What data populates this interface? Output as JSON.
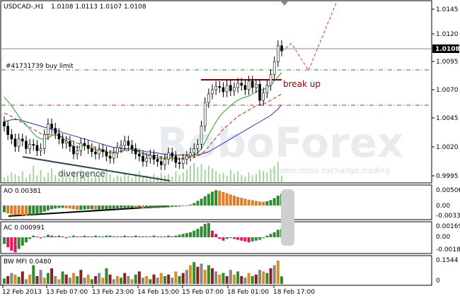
{
  "header": {
    "symbol_timeframe": "USDCAD-,H1",
    "ohlc": "1.0108 1.0113 1.0107 1.0108"
  },
  "watermark": {
    "brand": "RoboForex",
    "slogan": "broker.rosso.exchange.trading"
  },
  "price_axis": {
    "ticks": [
      "1.0145",
      "1.0120",
      "1.0095",
      "1.0070",
      "1.0045",
      "1.0020",
      "0.9995"
    ],
    "current_price": "1.0108"
  },
  "annotations": {
    "order_line": "#41731739 buy limit",
    "break_label": "break up",
    "divergence_label": "divergence"
  },
  "panels": {
    "ao": {
      "title": "AO 0.00381",
      "ticks": [
        "0.00506",
        "0.00",
        "-0.00331"
      ]
    },
    "ac": {
      "title": "AC 0.000991",
      "ticks": [
        "0.001693",
        "0.00",
        "-0.00180"
      ]
    },
    "bwmfi": {
      "title": "BW MFI 0.0480",
      "ticks": [
        "0.1544",
        "0"
      ]
    }
  },
  "time_axis": {
    "labels": [
      "12 Feb 2013",
      "13 Feb 07:00",
      "13 Feb 23:00",
      "14 Feb 15:00",
      "15 Feb 07:00",
      "18 Feb 01:00",
      "18 Feb 17:00"
    ]
  },
  "colors": {
    "bull_candle": "#ffffff",
    "bear_candle": "#000000",
    "ma_green": "#1aa51a",
    "ma_red": "#cc2222",
    "ma_blue": "#2233cc",
    "level_green": "#2a8a2a",
    "level_red": "#b83232",
    "resistance": "#8b0000",
    "forecast": "#e03030",
    "ao_up": "#2e8b2e",
    "ao_down": "#e07b28",
    "ac_up": "#2e8b2e",
    "ac_down": "#e0185a"
  },
  "chart_data": {
    "type": "candlestick",
    "title": "USDCAD-,H1",
    "ylim": [
      0.9985,
      1.0155
    ],
    "levels": {
      "buy_limit": 1.0089,
      "red_dashdot": 1.0059,
      "current": 1.0108,
      "resistance": 1.0081
    },
    "price_series": [
      1.0038,
      1.003,
      1.0026,
      1.0019,
      1.0026,
      1.0024,
      1.0017,
      1.0021,
      1.002,
      1.0015,
      1.0017,
      1.003,
      1.004,
      1.0036,
      1.0031,
      1.0026,
      1.0022,
      1.0024,
      1.0019,
      1.0012,
      1.0015,
      1.0022,
      1.002,
      1.0017,
      1.0014,
      1.0012,
      1.0016,
      1.0014,
      1.001,
      1.0008,
      1.0013,
      1.0018,
      1.002,
      1.0024,
      1.002,
      1.0017,
      1.0012,
      1.001,
      1.0005,
      1.0008,
      1.0011,
      1.0007,
      1.0005,
      1.0002,
      1.0007,
      1.0013,
      1.001,
      1.0004,
      1.0003,
      1.0007,
      1.001,
      1.0013,
      1.0017,
      1.0021,
      1.0038,
      1.006,
      1.0068,
      1.0072,
      1.0075,
      1.0074,
      1.007,
      1.0076,
      1.0071,
      1.0074,
      1.0078,
      1.0076,
      1.0072,
      1.008,
      1.0074,
      1.0077,
      1.0062,
      1.0069,
      1.0076,
      1.0086,
      1.0098,
      1.0113,
      1.0108
    ],
    "ma_green": [
      1.0065,
      1.0061,
      1.0057,
      1.0052,
      1.0047,
      1.0043,
      1.0039,
      1.0035,
      1.0031,
      1.0028,
      1.0026,
      1.0026,
      1.0027,
      1.0029,
      1.003,
      1.0029,
      1.0027,
      1.0024,
      1.0021,
      1.0019,
      1.0018,
      1.0019,
      1.002,
      1.0019,
      1.0017,
      1.0016,
      1.0015,
      1.0015,
      1.0014,
      1.0013,
      1.0013,
      1.0014,
      1.0015,
      1.0016,
      1.0017,
      1.0017,
      1.0016,
      1.0014,
      1.0012,
      1.0011,
      1.001,
      1.0009,
      1.0008,
      1.0008,
      1.0008,
      1.0008,
      1.0008,
      1.0007,
      1.0007,
      1.0008,
      1.0009,
      1.001,
      1.0011,
      1.0013,
      1.0017,
      1.0023,
      1.003,
      1.0036,
      1.0042,
      1.0047,
      1.0051,
      1.0054,
      1.0057,
      1.006,
      1.0062,
      1.0064,
      1.0065,
      1.0066,
      1.0068,
      1.007,
      1.0071,
      1.0072,
      1.0074,
      1.0076,
      1.008,
      1.0084,
      1.0088
    ],
    "ma_red": [
      1.005,
      1.0049,
      1.0047,
      1.0045,
      1.0043,
      1.0041,
      1.0039,
      1.0037,
      1.0035,
      1.0033,
      1.0031,
      1.003,
      1.003,
      1.003,
      1.003,
      1.0029,
      1.0028,
      1.0027,
      1.0025,
      1.0024,
      1.0022,
      1.0021,
      1.002,
      1.002,
      1.0019,
      1.0018,
      1.0017,
      1.0016,
      1.0015,
      1.0015,
      1.0014,
      1.0014,
      1.0014,
      1.0015,
      1.0015,
      1.0015,
      1.0015,
      1.0014,
      1.0013,
      1.0012,
      1.0011,
      1.0011,
      1.001,
      1.0009,
      1.0009,
      1.0009,
      1.0009,
      1.0008,
      1.0008,
      1.0008,
      1.0008,
      1.0009,
      1.0009,
      1.001,
      1.0012,
      1.0015,
      1.0019,
      1.0023,
      1.0027,
      1.0031,
      1.0035,
      1.0038,
      1.0041,
      1.0044,
      1.0047,
      1.0049,
      1.0051,
      1.0053,
      1.0055,
      1.0057,
      1.0058,
      1.0059,
      1.006,
      1.0062,
      1.0064,
      1.0066,
      1.0068
    ],
    "ma_blue": [
      1.0042,
      1.0043,
      1.0044,
      1.0044,
      1.0044,
      1.0043,
      1.0042,
      1.0041,
      1.004,
      1.0039,
      1.0038,
      1.0037,
      1.0036,
      1.0035,
      1.0034,
      1.0033,
      1.0032,
      1.0031,
      1.003,
      1.0029,
      1.0028,
      1.0027,
      1.0026,
      1.0025,
      1.0024,
      1.0023,
      1.0022,
      1.0021,
      1.002,
      1.0019,
      1.0018,
      1.0018,
      1.0017,
      1.0017,
      1.0017,
      1.0016,
      1.0016,
      1.0015,
      1.0015,
      1.0014,
      1.0014,
      1.0013,
      1.0013,
      1.0012,
      1.0012,
      1.0011,
      1.0011,
      1.0011,
      1.0011,
      1.0011,
      1.0011,
      1.0011,
      1.0011,
      1.0011,
      1.0012,
      1.0013,
      1.0014,
      1.0016,
      1.0018,
      1.002,
      1.0022,
      1.0024,
      1.0026,
      1.0028,
      1.003,
      1.0032,
      1.0034,
      1.0036,
      1.0038,
      1.004,
      1.0042,
      1.0044,
      1.0046,
      1.0048,
      1.0051,
      1.0054,
      1.0058
    ],
    "forecast": [
      [
        1.0108,
        1.0115
      ],
      [
        1.0108,
        1.009
      ],
      [
        1.009,
        1.0153
      ]
    ],
    "ao": [
      -0.0022,
      -0.0026,
      -0.0029,
      -0.003,
      -0.0031,
      -0.0032,
      -0.0033,
      -0.0031,
      -0.003,
      -0.0028,
      -0.0024,
      -0.002,
      -0.0016,
      -0.0012,
      -0.001,
      -0.0008,
      -0.0008,
      -0.0009,
      -0.001,
      -0.0012,
      -0.0014,
      -0.0014,
      -0.0013,
      -0.0012,
      -0.0012,
      -0.0013,
      -0.0013,
      -0.0012,
      -0.0012,
      -0.0011,
      -0.001,
      -0.0009,
      -0.0008,
      -0.0008,
      -0.0007,
      -0.0007,
      -0.0008,
      -0.0008,
      -0.0009,
      -0.0009,
      -0.0009,
      -0.0008,
      -0.0008,
      -0.0007,
      -0.0007,
      -0.0006,
      -0.0005,
      -0.0004,
      -0.0003,
      -0.0002,
      -0.0001,
      0.0003,
      0.0008,
      0.0015,
      0.0022,
      0.003,
      0.0038,
      0.0045,
      0.005,
      0.0048,
      0.0044,
      0.004,
      0.0036,
      0.0032,
      0.0028,
      0.0025,
      0.0022,
      0.0019,
      0.0017,
      0.0015,
      0.0013,
      0.0012,
      0.0014,
      0.0018,
      0.0024,
      0.0032,
      0.0038
    ],
    "ac": [
      -0.0008,
      -0.0012,
      -0.0016,
      -0.0018,
      -0.0014,
      -0.001,
      -0.0006,
      -0.0002,
      0.0002,
      0.0001,
      -0.0001,
      0.0001,
      0.0003,
      0.0002,
      0.0001,
      0.0002,
      0.0001,
      -0.0001,
      0.0001,
      0.0002,
      0.0001,
      0.0001,
      0.0002,
      0.0001,
      0.0001,
      0.0002,
      0.0001,
      0.0001,
      0.0002,
      0.0002,
      0.0001,
      0.0001,
      0.0001,
      0.0002,
      0.0001,
      0.0001,
      0.0002,
      0.0001,
      0.0001,
      0.0001,
      0.0001,
      0.0002,
      0.0001,
      0.0001,
      0.0001,
      0.0002,
      0.0001,
      0.0002,
      0.0003,
      0.0004,
      0.0005,
      0.0006,
      0.0008,
      0.001,
      0.0013,
      0.0016,
      0.0017,
      0.0008,
      0.0004,
      -0.0002,
      -0.0004,
      -0.0002,
      -0.0001,
      -0.0002,
      -0.0003,
      -0.0004,
      -0.0005,
      -0.0006,
      -0.0005,
      -0.0004,
      -0.0003,
      -0.0001,
      0.0002,
      0.0004,
      0.0006,
      0.0009,
      0.001
    ],
    "bwmfi": [
      0.035,
      0.05,
      0.07,
      0.06,
      0.045,
      0.08,
      0.03,
      0.06,
      0.12,
      0.05,
      0.09,
      0.04,
      0.07,
      0.1,
      0.05,
      0.03,
      0.08,
      0.06,
      0.04,
      0.07,
      0.05,
      0.09,
      0.04,
      0.06,
      0.03,
      0.05,
      0.07,
      0.04,
      0.1,
      0.06,
      0.03,
      0.05,
      0.04,
      0.07,
      0.05,
      0.03,
      0.06,
      0.08,
      0.04,
      0.05,
      0.03,
      0.06,
      0.04,
      0.07,
      0.05,
      0.06,
      0.04,
      0.08,
      0.05,
      0.07,
      0.09,
      0.12,
      0.14,
      0.11,
      0.13,
      0.09,
      0.12,
      0.1,
      0.08,
      0.06,
      0.07,
      0.05,
      0.09,
      0.06,
      0.08,
      0.05,
      0.04,
      0.07,
      0.05,
      0.06,
      0.09,
      0.08,
      0.07,
      0.1,
      0.12,
      0.15,
      0.048
    ]
  }
}
